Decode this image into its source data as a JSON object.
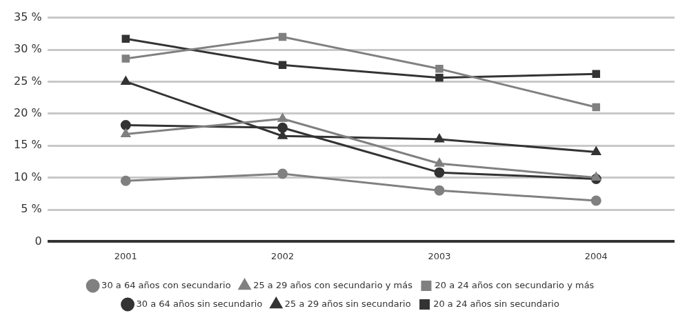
{
  "chart_data": {
    "type": "line",
    "categories": [
      "2001",
      "2002",
      "2003",
      "2004"
    ],
    "series": [
      {
        "name": "20 a 24 años sin secundario",
        "color": "#333333",
        "marker": "square",
        "values": [
          31.7,
          27.6,
          25.6,
          26.2
        ]
      },
      {
        "name": "25 a 29 años sin secundario",
        "color": "#333333",
        "marker": "triangle",
        "values": [
          25,
          16.5,
          16,
          14
        ]
      },
      {
        "name": "30 a 64 años sin secundario",
        "color": "#333333",
        "marker": "circle",
        "values": [
          18.2,
          17.8,
          10.8,
          9.8
        ]
      },
      {
        "name": "20 a 24 años con secundario y más",
        "color": "#808080",
        "marker": "square",
        "values": [
          28.6,
          32,
          27,
          21
        ]
      },
      {
        "name": "25 a 29 años con secundario y más",
        "color": "#808080",
        "marker": "triangle",
        "values": [
          16.8,
          19.2,
          12.2,
          10
        ]
      },
      {
        "name": "30 a 64 años con secundario",
        "color": "#808080",
        "marker": "circle",
        "values": [
          9.5,
          10.6,
          8,
          6.4
        ]
      }
    ],
    "ylim": [
      0,
      35
    ],
    "yticks": [
      0,
      {
        "value": 5,
        "label": "5 %"
      },
      {
        "value": 10,
        "label": "10 %"
      },
      {
        "value": 15,
        "label": "15 %"
      },
      {
        "value": 20,
        "label": "20 %"
      },
      {
        "value": 25,
        "label": "25 %"
      },
      {
        "value": 30,
        "label": "30 %"
      },
      {
        "value": 35,
        "label": "35 %"
      }
    ],
    "grid": "y",
    "legend": "bottom",
    "line_style": "solid"
  }
}
